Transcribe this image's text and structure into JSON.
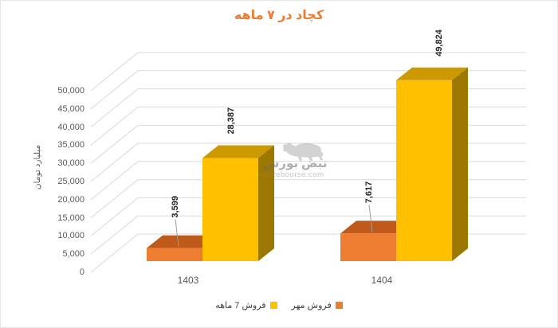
{
  "title": {
    "text": "کچاد در ۷ ماهه",
    "color": "#ED7D31"
  },
  "watermark": {
    "logo_text": "نبض بورس",
    "url_text": "nabzebourse.com"
  },
  "colors": {
    "gridline": "#D9D9D9",
    "axis_text": "#595959",
    "data_label_text": "#262626",
    "leader_line": "#9B9B9B"
  },
  "chart_data": {
    "type": "bar",
    "subtype": "3d-clustered-column",
    "title": "کچاد در ۷ ماهه",
    "categories": [
      "1403",
      "1404"
    ],
    "series": [
      {
        "name": "فروش مهر",
        "values": [
          3599,
          7617
        ],
        "color": "#ED7D31",
        "top_color": "#BE5A1B",
        "side_color": "#A04A16"
      },
      {
        "name": "فروش 7 ماهه",
        "values": [
          28387,
          49824
        ],
        "color": "#FFC000",
        "top_color": "#CC9900",
        "side_color": "#9C7800"
      }
    ],
    "data_labels": [
      "3,599",
      "7,617",
      "28,387",
      "49,824"
    ],
    "xlabel": "",
    "ylabel": "میلیارد تومان",
    "ylim": [
      0,
      50000
    ],
    "ytick_step": 5000,
    "ytick_labels": [
      "0",
      "5,000",
      "10,000",
      "15,000",
      "20,000",
      "25,000",
      "30,000",
      "35,000",
      "40,000",
      "45,000",
      "50,000"
    ],
    "grid": true,
    "legend_position": "bottom"
  }
}
